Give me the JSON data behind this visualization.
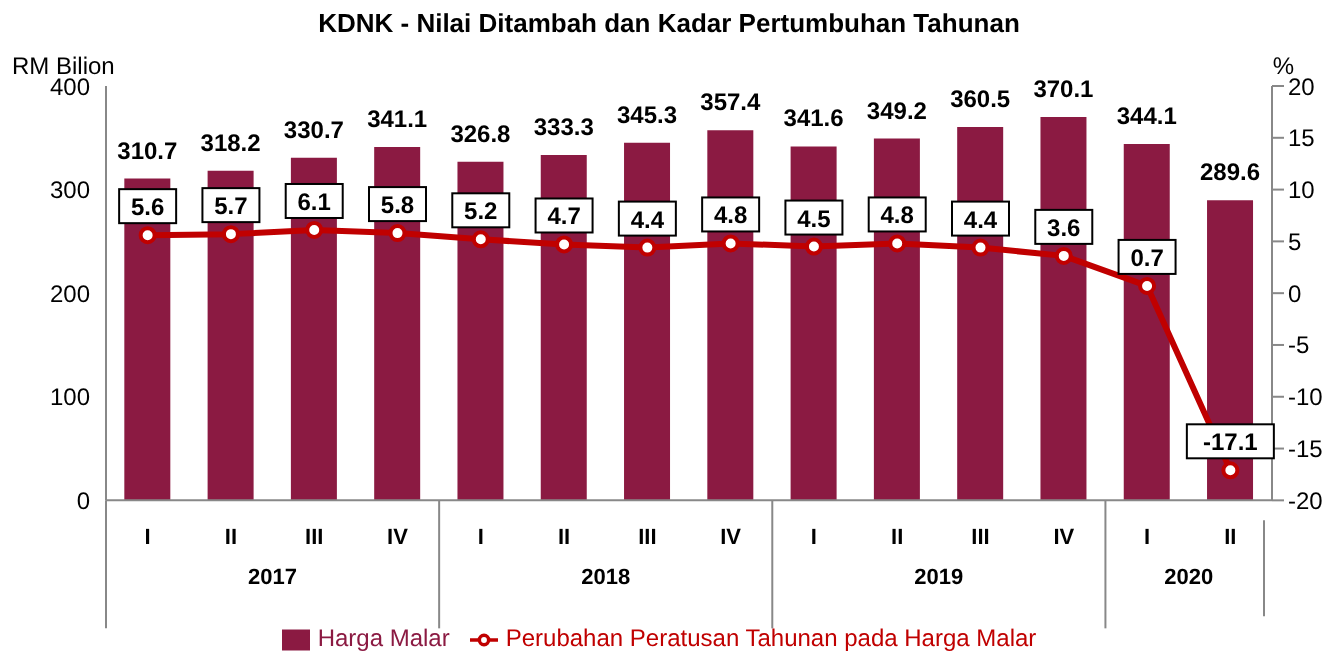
{
  "chart_data": {
    "type": "bar",
    "title": "KDNK - Nilai Ditambah dan Kadar Pertumbuhan Tahunan",
    "ylabel": "RM Bilion",
    "y2label": "%",
    "categories": [
      "I",
      "II",
      "III",
      "IV",
      "I",
      "II",
      "III",
      "IV",
      "I",
      "II",
      "III",
      "IV",
      "I",
      "II"
    ],
    "annotations": [
      "2017",
      "2018",
      "2019",
      "2020"
    ],
    "series": [
      {
        "name": "Harga Malar",
        "color": "#8b1a42",
        "values": [
          310.7,
          318.2,
          330.7,
          341.1,
          326.8,
          333.3,
          345.3,
          357.4,
          341.6,
          349.2,
          360.5,
          370.1,
          344.1,
          289.6
        ]
      },
      {
        "name": "Perubahan Peratusan Tahunan pada Harga Malar",
        "type": "line",
        "axis": "y2",
        "color": "#c00000",
        "marker": "circle",
        "values": [
          5.6,
          5.7,
          6.1,
          5.8,
          5.2,
          4.7,
          4.4,
          4.8,
          4.5,
          4.8,
          4.4,
          3.6,
          0.7,
          -17.1
        ]
      }
    ],
    "ylim": [
      0,
      400
    ],
    "yticks": [
      0,
      100,
      200,
      300,
      400
    ],
    "y2lim": [
      -20,
      20
    ],
    "y2ticks": [
      -20,
      -15,
      -10,
      -5,
      0,
      5,
      10,
      15,
      20
    ],
    "data_labels": true,
    "legend": "bottom",
    "grid": false
  }
}
